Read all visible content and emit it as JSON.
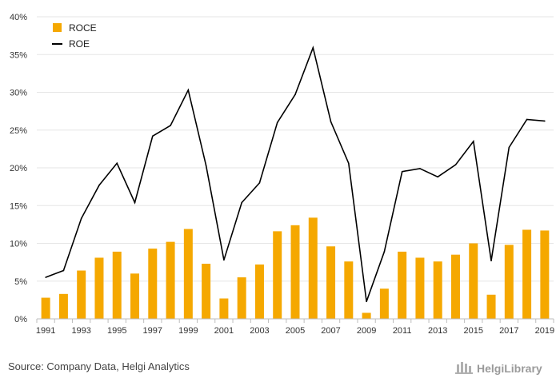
{
  "chart_data": {
    "type": "bar",
    "x": [
      1991,
      1992,
      1993,
      1994,
      1995,
      1996,
      1997,
      1998,
      1999,
      2000,
      2001,
      2002,
      2003,
      2004,
      2005,
      2006,
      2007,
      2008,
      2009,
      2010,
      2011,
      2012,
      2013,
      2014,
      2015,
      2016,
      2017,
      2018,
      2019
    ],
    "x_tick_labels": [
      "1991",
      "1993",
      "1995",
      "1997",
      "1999",
      "2001",
      "2003",
      "2005",
      "2007",
      "2009",
      "2011",
      "2013",
      "2015",
      "2017",
      "2019"
    ],
    "series": [
      {
        "name": "ROCE",
        "type": "bar",
        "color": "#f5a800",
        "values": [
          2.8,
          3.3,
          6.4,
          8.1,
          8.9,
          6.0,
          9.3,
          10.2,
          11.9,
          7.3,
          2.7,
          5.5,
          7.2,
          11.6,
          12.4,
          13.4,
          9.6,
          7.6,
          0.8,
          4.0,
          8.9,
          8.1,
          7.6,
          8.5,
          10.0,
          3.2,
          9.8,
          11.8,
          11.7
        ]
      },
      {
        "name": "ROE",
        "type": "line",
        "color": "#000000",
        "values": [
          5.5,
          6.4,
          13.3,
          17.7,
          20.6,
          15.4,
          24.2,
          25.6,
          30.3,
          20.3,
          7.8,
          15.4,
          18.0,
          26.0,
          29.7,
          35.9,
          26.1,
          20.6,
          2.3,
          8.9,
          19.5,
          19.9,
          18.8,
          20.4,
          23.5,
          7.7,
          22.7,
          26.4,
          26.2
        ]
      }
    ],
    "y_tick_labels": [
      "0%",
      "5%",
      "10%",
      "15%",
      "20%",
      "25%",
      "30%",
      "35%",
      "40%"
    ],
    "ylim": [
      0,
      40
    ],
    "y_step": 5,
    "grid": true,
    "legend_position": "top-left",
    "colors": {
      "grid": "#e6e6e6",
      "axis": "#bdbdbd",
      "bar": "#f5a800",
      "line": "#000000"
    }
  },
  "footer": {
    "source": "Source: Company Data, Helgi Analytics",
    "brand": "HelgiLibrary"
  }
}
